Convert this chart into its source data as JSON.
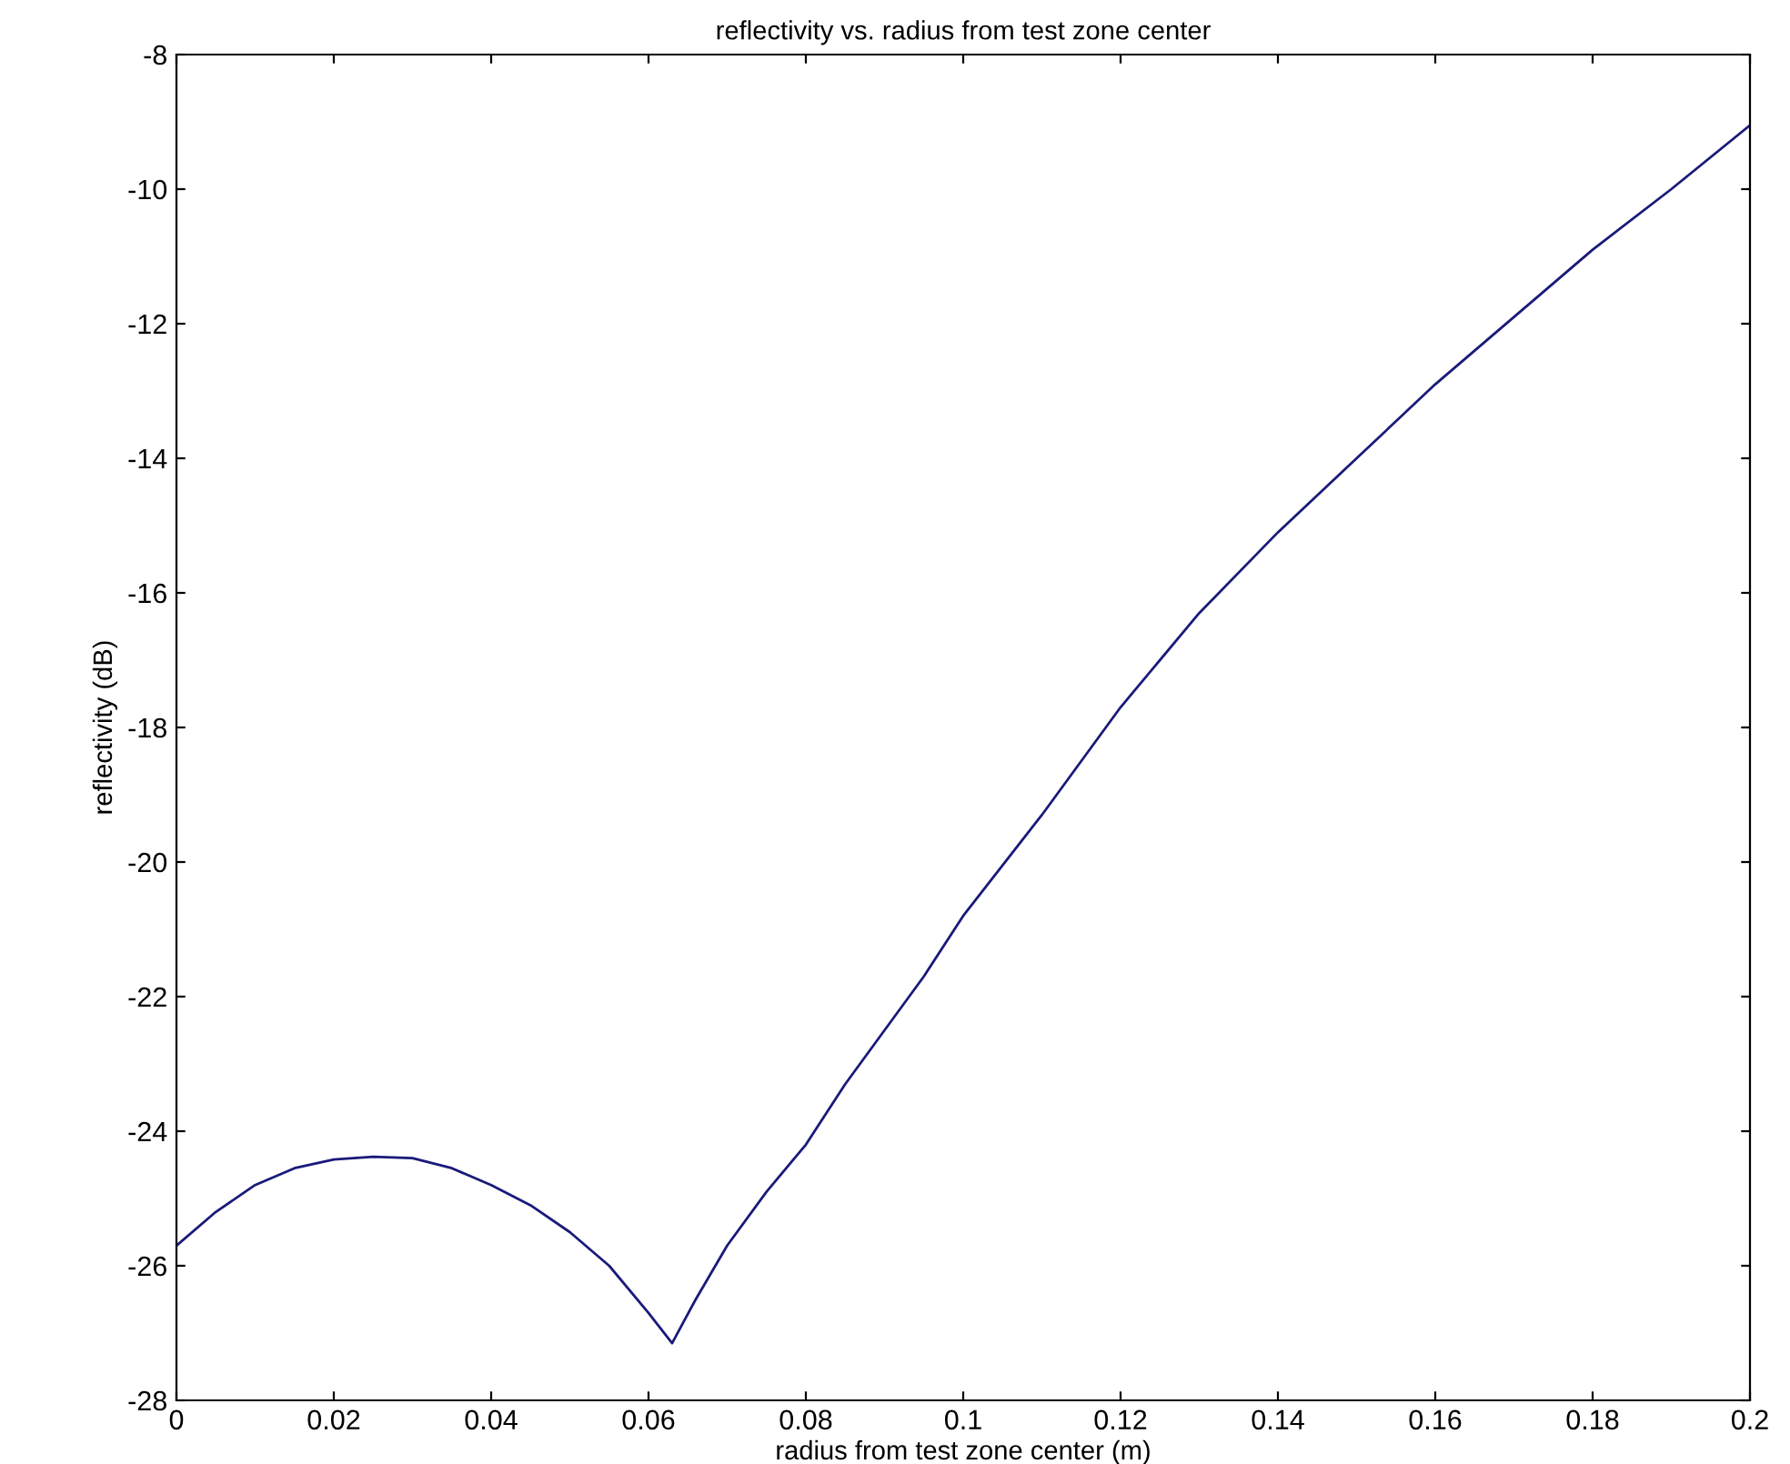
{
  "chart_data": {
    "type": "line",
    "title": "reflectivity vs. radius from test zone center",
    "xlabel": "radius from test zone center (m)",
    "ylabel": "reflectivity (dB)",
    "xlim": [
      0,
      0.2
    ],
    "ylim": [
      -28,
      -8
    ],
    "xticks": [
      {
        "value": 0,
        "label": "0"
      },
      0.02,
      0.04,
      0.06,
      0.08,
      0.1,
      0.12,
      0.14,
      0.16,
      0.18,
      0.2
    ],
    "yticks": [
      -28,
      -26,
      -24,
      -22,
      -20,
      -18,
      -16,
      -14,
      -12,
      -10,
      -8
    ],
    "grid": false,
    "legend": false,
    "marker": "none",
    "line_style": "solid",
    "series": [
      {
        "color": "#1a1a7a",
        "x": [
          0,
          0.005,
          0.01,
          0.015,
          0.02,
          0.025,
          0.03,
          0.035,
          0.04,
          0.045,
          0.05,
          0.055,
          0.06,
          0.063,
          0.066,
          0.07,
          0.075,
          0.08,
          0.085,
          0.09,
          0.095,
          0.1,
          0.11,
          0.12,
          0.13,
          0.14,
          0.15,
          0.16,
          0.17,
          0.18,
          0.19,
          0.2
        ],
        "values": [
          -25.7,
          -25.2,
          -24.8,
          -24.55,
          -24.42,
          -24.38,
          -24.4,
          -24.55,
          -24.8,
          -25.1,
          -25.5,
          -26.0,
          -26.7,
          -27.15,
          -26.5,
          -25.7,
          -24.9,
          -24.2,
          -23.3,
          -22.5,
          -21.7,
          -20.8,
          -19.3,
          -17.7,
          -16.3,
          -15.1,
          -14.0,
          -12.9,
          -11.9,
          -10.9,
          -10.0,
          -9.05
        ]
      }
    ]
  }
}
